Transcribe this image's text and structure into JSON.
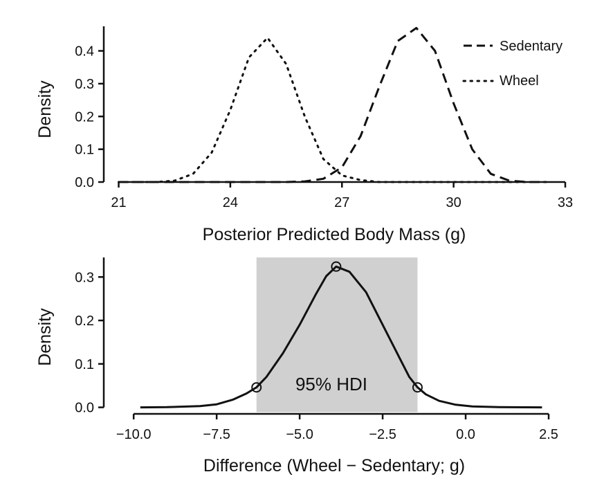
{
  "chart_data": [
    {
      "type": "line",
      "title": "",
      "xlabel": "Posterior Predicted Body Mass (g)",
      "ylabel": "Density",
      "xlim": [
        20.6,
        33
      ],
      "ylim": [
        0,
        0.475
      ],
      "x_ticks": [
        21,
        24,
        27,
        30,
        33
      ],
      "x_tick_labels": [
        "21",
        "24",
        "27",
        "30",
        "33"
      ],
      "y_ticks": [
        0,
        0.1,
        0.2,
        0.3,
        0.4
      ],
      "y_tick_labels": [
        "0.0",
        "0.1",
        "0.2",
        "0.3",
        "0.4"
      ],
      "legend_position": "top-right",
      "grid": false,
      "series": [
        {
          "name": "Sedentary",
          "style": "dashed",
          "x": [
            21.0,
            24.0,
            25.5,
            26.0,
            26.5,
            27.0,
            27.5,
            28.0,
            28.5,
            29.0,
            29.5,
            30.0,
            30.5,
            31.0,
            31.5,
            32.0,
            32.5
          ],
          "y": [
            0.0,
            0.0,
            0.0,
            0.002,
            0.01,
            0.045,
            0.14,
            0.29,
            0.43,
            0.47,
            0.4,
            0.24,
            0.1,
            0.025,
            0.004,
            0.0,
            0.0
          ]
        },
        {
          "name": "Wheel",
          "style": "dotted",
          "x": [
            21.0,
            22.0,
            22.5,
            23.0,
            23.5,
            24.0,
            24.5,
            25.0,
            25.5,
            26.0,
            26.5,
            27.0,
            27.5,
            28.0,
            29.0,
            30.0,
            31.0,
            32.0,
            32.5
          ],
          "y": [
            0.0,
            0.0,
            0.004,
            0.025,
            0.09,
            0.22,
            0.38,
            0.44,
            0.36,
            0.2,
            0.07,
            0.02,
            0.006,
            0.0,
            0.0,
            0.0,
            0.0,
            0.0,
            0.0
          ]
        }
      ]
    },
    {
      "type": "line",
      "title": "",
      "xlabel": "Difference (Wheel − Sedentary; g)",
      "ylabel": "Density",
      "xlim": [
        -10.9,
        3.0
      ],
      "ylim": [
        -0.015,
        0.345
      ],
      "x_ticks": [
        -10.0,
        -7.5,
        -5.0,
        -2.5,
        0.0,
        2.5
      ],
      "x_tick_labels": [
        "−10.0",
        "−7.5",
        "−5.0",
        "−2.5",
        "0.0",
        "2.5"
      ],
      "y_ticks": [
        0,
        0.1,
        0.2,
        0.3
      ],
      "y_tick_labels": [
        "0.0",
        "0.1",
        "0.2",
        "0.3"
      ],
      "grid": false,
      "series": [
        {
          "name": "",
          "style": "solid",
          "x": [
            -9.8,
            -9.0,
            -8.0,
            -7.5,
            -7.0,
            -6.6,
            -6.3,
            -6.0,
            -5.5,
            -5.0,
            -4.5,
            -4.2,
            -3.9,
            -3.5,
            -3.0,
            -2.5,
            -2.0,
            -1.7,
            -1.45,
            -1.2,
            -0.8,
            -0.3,
            0.2,
            1.0,
            1.8,
            2.3
          ],
          "y": [
            0.0,
            0.0005,
            0.003,
            0.007,
            0.018,
            0.032,
            0.046,
            0.07,
            0.125,
            0.19,
            0.262,
            0.302,
            0.324,
            0.312,
            0.265,
            0.19,
            0.115,
            0.07,
            0.046,
            0.03,
            0.015,
            0.006,
            0.002,
            0.0005,
            0.0001,
            0.0
          ]
        }
      ],
      "hdi": {
        "label": "95% HDI",
        "lower": -6.3,
        "upper": -1.45,
        "mode": -3.9,
        "density_at_lower": 0.046,
        "density_at_upper": 0.046,
        "density_at_mode": 0.324,
        "fill_color": "#d0d0d0"
      }
    }
  ]
}
